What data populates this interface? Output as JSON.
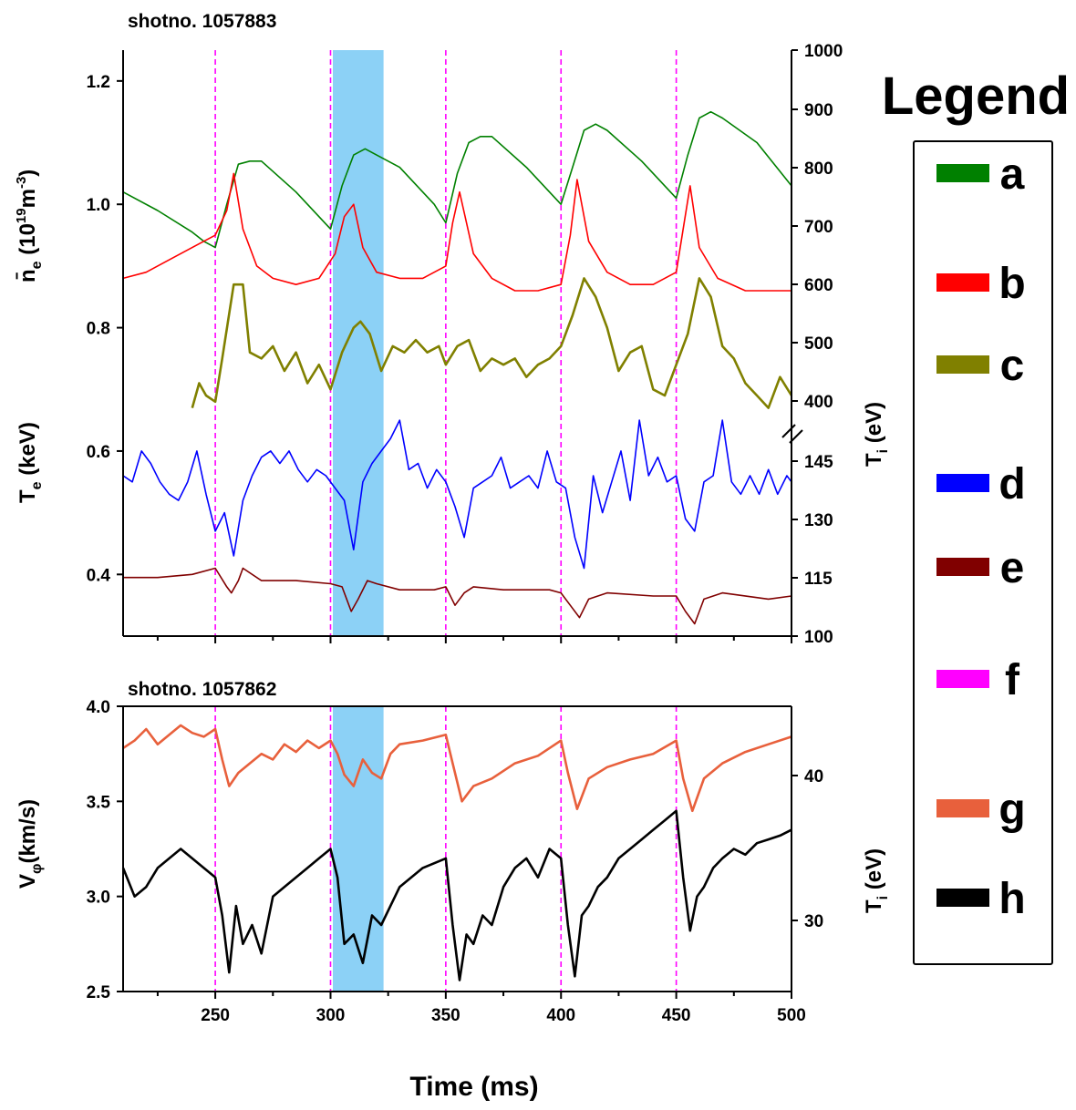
{
  "chart_data": [
    {
      "type": "line",
      "panel": "top",
      "title": "shotno. 1057883",
      "xlim": [
        210,
        500
      ],
      "x_ticks": [
        250,
        300,
        350,
        400,
        450,
        500
      ],
      "left_axis": {
        "label_main": "n̄",
        "label_sub": "e",
        "label_unit_pre": " (10",
        "label_sup": "19",
        "label_unit_mid": "m",
        "label_sup2": "-3",
        "label_unit_post": ")",
        "label_lower": "T",
        "label_lower_sub": "e",
        "label_lower_unit": " (keV)",
        "ylim": [
          0.3,
          1.25
        ],
        "ticks": [
          0.4,
          0.6,
          0.8,
          1.0,
          1.2
        ],
        "tick_labels": [
          "0.4",
          "0.6",
          "0.8",
          "1.0",
          "1.2"
        ]
      },
      "right_axis": {
        "label_main": "T",
        "label_sub": "i",
        "label_unit": " (eV)",
        "tick_labels_upper": [
          "400",
          "500",
          "600",
          "700",
          "800",
          "900",
          "1000"
        ],
        "tick_labels_lower": [
          "100",
          "115",
          "130",
          "145"
        ]
      },
      "highlight_band": [
        301,
        323
      ],
      "marker_lines": [
        250,
        300,
        350,
        400,
        450
      ],
      "series": [
        {
          "key": "a",
          "color": "#008000",
          "x": [
            210,
            225,
            240,
            245,
            250,
            255,
            260,
            265,
            270,
            285,
            300,
            305,
            310,
            315,
            320,
            330,
            345,
            350,
            355,
            360,
            365,
            370,
            385,
            400,
            405,
            410,
            415,
            420,
            435,
            450,
            455,
            460,
            465,
            470,
            485,
            500
          ],
          "y": [
            1.02,
            0.99,
            0.955,
            0.94,
            0.93,
            1.0,
            1.065,
            1.07,
            1.07,
            1.02,
            0.96,
            1.03,
            1.08,
            1.09,
            1.08,
            1.06,
            1.0,
            0.97,
            1.05,
            1.1,
            1.11,
            1.11,
            1.06,
            1.0,
            1.06,
            1.12,
            1.13,
            1.12,
            1.07,
            1.01,
            1.08,
            1.14,
            1.15,
            1.14,
            1.1,
            1.03
          ]
        },
        {
          "key": "b",
          "color": "#ff0000",
          "x": [
            210,
            220,
            230,
            240,
            250,
            255,
            258,
            262,
            268,
            275,
            285,
            295,
            302,
            306,
            310,
            314,
            320,
            330,
            340,
            350,
            353,
            356,
            362,
            370,
            380,
            390,
            400,
            404,
            407,
            412,
            420,
            430,
            440,
            450,
            453,
            456,
            460,
            468,
            480,
            490,
            500
          ],
          "y": [
            0.88,
            0.89,
            0.91,
            0.93,
            0.95,
            0.99,
            1.05,
            0.96,
            0.9,
            0.88,
            0.87,
            0.88,
            0.92,
            0.98,
            1.0,
            0.93,
            0.89,
            0.88,
            0.88,
            0.9,
            0.97,
            1.02,
            0.92,
            0.88,
            0.86,
            0.86,
            0.87,
            0.95,
            1.04,
            0.94,
            0.89,
            0.87,
            0.87,
            0.89,
            0.96,
            1.03,
            0.93,
            0.88,
            0.86,
            0.86,
            0.86
          ]
        },
        {
          "key": "c",
          "color": "#808000",
          "x": [
            240,
            243,
            246,
            250,
            253,
            258,
            262,
            265,
            270,
            275,
            280,
            285,
            290,
            295,
            300,
            305,
            310,
            313,
            317,
            322,
            327,
            332,
            337,
            342,
            347,
            350,
            355,
            360,
            365,
            370,
            375,
            380,
            385,
            390,
            395,
            400,
            405,
            410,
            415,
            420,
            425,
            430,
            435,
            440,
            445,
            450,
            455,
            460,
            465,
            470,
            475,
            480,
            485,
            490,
            495,
            500
          ],
          "y": [
            0.67,
            0.71,
            0.69,
            0.68,
            0.75,
            0.87,
            0.87,
            0.76,
            0.75,
            0.77,
            0.73,
            0.76,
            0.71,
            0.74,
            0.7,
            0.76,
            0.8,
            0.81,
            0.79,
            0.73,
            0.77,
            0.76,
            0.78,
            0.76,
            0.77,
            0.74,
            0.77,
            0.78,
            0.73,
            0.75,
            0.74,
            0.75,
            0.72,
            0.74,
            0.75,
            0.77,
            0.82,
            0.88,
            0.85,
            0.8,
            0.73,
            0.76,
            0.77,
            0.7,
            0.69,
            0.74,
            0.79,
            0.88,
            0.85,
            0.77,
            0.75,
            0.71,
            0.69,
            0.67,
            0.72,
            0.69
          ]
        },
        {
          "key": "d",
          "color": "#0000ff",
          "x": [
            210,
            214,
            218,
            222,
            226,
            230,
            234,
            238,
            242,
            246,
            250,
            254,
            258,
            262,
            266,
            270,
            274,
            278,
            282,
            286,
            290,
            294,
            298,
            302,
            306,
            310,
            314,
            318,
            322,
            326,
            330,
            334,
            338,
            342,
            346,
            350,
            354,
            358,
            362,
            366,
            370,
            374,
            378,
            382,
            386,
            390,
            394,
            398,
            402,
            406,
            410,
            414,
            418,
            422,
            426,
            430,
            434,
            438,
            442,
            446,
            450,
            454,
            458,
            462,
            466,
            470,
            474,
            478,
            482,
            486,
            490,
            494,
            498,
            500
          ],
          "y": [
            0.56,
            0.55,
            0.6,
            0.58,
            0.55,
            0.53,
            0.52,
            0.55,
            0.6,
            0.53,
            0.47,
            0.5,
            0.43,
            0.52,
            0.56,
            0.59,
            0.6,
            0.58,
            0.6,
            0.57,
            0.55,
            0.57,
            0.56,
            0.54,
            0.52,
            0.44,
            0.55,
            0.58,
            0.6,
            0.62,
            0.65,
            0.57,
            0.58,
            0.54,
            0.57,
            0.55,
            0.51,
            0.46,
            0.54,
            0.55,
            0.56,
            0.59,
            0.54,
            0.55,
            0.56,
            0.54,
            0.6,
            0.55,
            0.54,
            0.46,
            0.41,
            0.56,
            0.5,
            0.55,
            0.6,
            0.52,
            0.65,
            0.56,
            0.59,
            0.55,
            0.56,
            0.49,
            0.47,
            0.55,
            0.56,
            0.65,
            0.55,
            0.53,
            0.56,
            0.53,
            0.57,
            0.53,
            0.56,
            0.55
          ]
        },
        {
          "key": "e",
          "color": "#800000",
          "x": [
            210,
            225,
            240,
            250,
            255,
            257,
            260,
            262,
            270,
            285,
            300,
            305,
            309,
            312,
            316,
            320,
            330,
            345,
            350,
            354,
            358,
            362,
            375,
            395,
            400,
            404,
            408,
            412,
            420,
            440,
            450,
            454,
            458,
            462,
            470,
            490,
            500
          ],
          "y": [
            0.395,
            0.395,
            0.4,
            0.41,
            0.38,
            0.37,
            0.39,
            0.41,
            0.39,
            0.39,
            0.385,
            0.38,
            0.34,
            0.36,
            0.39,
            0.385,
            0.375,
            0.375,
            0.38,
            0.35,
            0.37,
            0.38,
            0.375,
            0.375,
            0.37,
            0.35,
            0.33,
            0.36,
            0.37,
            0.365,
            0.365,
            0.34,
            0.32,
            0.36,
            0.37,
            0.36,
            0.365
          ]
        }
      ]
    },
    {
      "type": "line",
      "panel": "bottom",
      "title": "shotno. 1057862",
      "xlim": [
        210,
        500
      ],
      "x_ticks": [
        250,
        300,
        350,
        400,
        450,
        500
      ],
      "x_tick_labels": [
        "250",
        "300",
        "350",
        "400",
        "450",
        "500"
      ],
      "xlabel": "Time (ms)",
      "left_axis": {
        "label_main": "V",
        "label_sub": "φ",
        "label_unit": "(km/s)",
        "ylim": [
          2.5,
          4.0
        ],
        "ticks": [
          2.5,
          3.0,
          3.5,
          4.0
        ],
        "tick_labels": [
          "2.5",
          "3.0",
          "3.5",
          "4.0"
        ]
      },
      "right_axis": {
        "label_main": "T",
        "label_sub": "i",
        "label_unit": " (eV)",
        "tick_labels": [
          "30",
          "40"
        ]
      },
      "highlight_band": [
        301,
        323
      ],
      "marker_lines": [
        250,
        300,
        350,
        400,
        450
      ],
      "series": [
        {
          "key": "g",
          "color": "#e8603c",
          "x": [
            210,
            215,
            220,
            225,
            230,
            235,
            240,
            245,
            250,
            253,
            256,
            260,
            265,
            270,
            275,
            280,
            285,
            290,
            295,
            300,
            303,
            306,
            310,
            314,
            318,
            322,
            326,
            330,
            340,
            350,
            353,
            357,
            362,
            370,
            380,
            390,
            400,
            403,
            407,
            412,
            420,
            430,
            440,
            450,
            453,
            457,
            462,
            470,
            480,
            490,
            500
          ],
          "y": [
            3.78,
            3.82,
            3.88,
            3.8,
            3.85,
            3.9,
            3.86,
            3.84,
            3.88,
            3.72,
            3.58,
            3.65,
            3.7,
            3.75,
            3.72,
            3.8,
            3.76,
            3.82,
            3.78,
            3.82,
            3.75,
            3.64,
            3.58,
            3.72,
            3.65,
            3.62,
            3.75,
            3.8,
            3.82,
            3.85,
            3.7,
            3.5,
            3.58,
            3.62,
            3.7,
            3.74,
            3.82,
            3.65,
            3.46,
            3.62,
            3.68,
            3.72,
            3.75,
            3.82,
            3.62,
            3.45,
            3.62,
            3.7,
            3.76,
            3.8,
            3.84
          ]
        },
        {
          "key": "h",
          "color": "#000000",
          "x": [
            210,
            215,
            220,
            225,
            230,
            235,
            240,
            245,
            250,
            253,
            256,
            259,
            262,
            266,
            270,
            275,
            280,
            285,
            290,
            295,
            300,
            303,
            306,
            310,
            314,
            318,
            322,
            326,
            330,
            340,
            350,
            353,
            356,
            359,
            362,
            366,
            370,
            375,
            380,
            385,
            390,
            395,
            400,
            403,
            406,
            409,
            412,
            416,
            420,
            425,
            430,
            435,
            440,
            445,
            450,
            453,
            456,
            459,
            462,
            466,
            470,
            475,
            480,
            485,
            490,
            495,
            500
          ],
          "y": [
            3.15,
            3.0,
            3.05,
            3.15,
            3.2,
            3.25,
            3.2,
            3.15,
            3.1,
            2.9,
            2.6,
            2.95,
            2.75,
            2.85,
            2.7,
            3.0,
            3.05,
            3.1,
            3.15,
            3.2,
            3.25,
            3.1,
            2.75,
            2.8,
            2.65,
            2.9,
            2.85,
            2.95,
            3.05,
            3.15,
            3.2,
            2.85,
            2.56,
            2.8,
            2.75,
            2.9,
            2.85,
            3.05,
            3.15,
            3.2,
            3.1,
            3.25,
            3.2,
            2.85,
            2.58,
            2.9,
            2.95,
            3.05,
            3.1,
            3.2,
            3.25,
            3.3,
            3.35,
            3.4,
            3.45,
            3.1,
            2.82,
            3.0,
            3.05,
            3.15,
            3.2,
            3.25,
            3.22,
            3.28,
            3.3,
            3.32,
            3.35
          ]
        }
      ]
    }
  ],
  "legend": {
    "title": "Legend",
    "items": [
      {
        "key": "a",
        "color": "#008000"
      },
      {
        "key": "b",
        "color": "#ff0000"
      },
      {
        "key": "c",
        "color": "#808000"
      },
      {
        "key": "d",
        "color": "#0000ff"
      },
      {
        "key": "e",
        "color": "#800000"
      },
      {
        "key": "f",
        "color": "#ff00ff"
      },
      {
        "key": "g",
        "color": "#e8603c"
      },
      {
        "key": "h",
        "color": "#000000"
      }
    ]
  },
  "colors": {
    "highlight": "#82cdf5",
    "markers": "#ff00ff"
  }
}
